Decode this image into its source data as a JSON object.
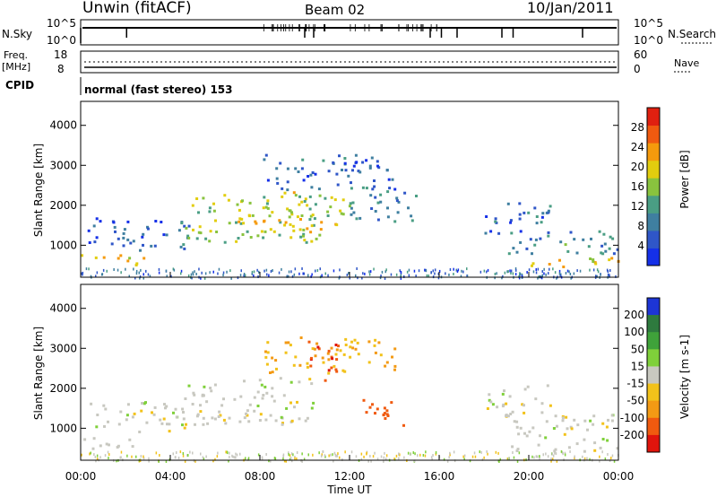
{
  "header": {
    "station": "Unwin (fitACF)",
    "beam": "Beam 02",
    "date": "10/Jan/2011"
  },
  "params": {
    "nsky_label": "N.Sky",
    "nsky_ticks": [
      "10^5",
      "10^0"
    ],
    "nsearch_label": "N.Search",
    "nsearch_ticks": [
      "10^5",
      "10^0"
    ],
    "freq_label_1": "Freq.",
    "freq_label_2": "[MHz]",
    "freq_ticks": [
      "18",
      "8"
    ],
    "nave_label": "Nave",
    "nave_ticks": [
      "60",
      "0"
    ],
    "cpid_label": "CPID",
    "cpid_text": "normal (fast stereo) 153"
  },
  "chart_data": [
    {
      "type": "heatmap",
      "panel": "power",
      "title": "",
      "xlabel": "Time UT",
      "ylabel": "Slant Range [km]",
      "x_ticks": [
        "00:00",
        "04:00",
        "08:00",
        "12:00",
        "16:00",
        "20:00",
        "00:00"
      ],
      "y_ticks": [
        1000,
        2000,
        3000,
        4000
      ],
      "ylim": [
        200,
        4600
      ],
      "colorbar_label": "Power [dB]",
      "colorbar_ticks": [
        4,
        8,
        12,
        16,
        20,
        24,
        28
      ],
      "colorbar_range": [
        0,
        32
      ],
      "colors": [
        "#1530e8",
        "#2f56c8",
        "#3f7fa0",
        "#4a9e84",
        "#89c33e",
        "#e2cd0e",
        "#f59a0c",
        "#f05a10",
        "#e02010"
      ],
      "regions": [
        {
          "t": [
            0.0,
            3.0
          ],
          "range": [
            500,
            800
          ],
          "value": 20
        },
        {
          "t": [
            0.3,
            5.0
          ],
          "range": [
            900,
            1700
          ],
          "value": 6
        },
        {
          "t": [
            4.5,
            10.5
          ],
          "range": [
            1100,
            2300
          ],
          "value": 16
        },
        {
          "t": [
            7.0,
            11.5
          ],
          "range": [
            1200,
            1700
          ],
          "value": 21
        },
        {
          "t": [
            8.0,
            14.0
          ],
          "range": [
            2400,
            3300
          ],
          "value": 7
        },
        {
          "t": [
            9.0,
            12.0
          ],
          "range": [
            1700,
            2400
          ],
          "value": 17
        },
        {
          "t": [
            12.0,
            15.0
          ],
          "range": [
            1600,
            2500
          ],
          "value": 9
        },
        {
          "t": [
            18.0,
            21.0
          ],
          "range": [
            1300,
            2100
          ],
          "value": 8
        },
        {
          "t": [
            19.0,
            24.0
          ],
          "range": [
            800,
            1400
          ],
          "value": 10
        },
        {
          "t": [
            20.0,
            24.0
          ],
          "range": [
            450,
            750
          ],
          "value": 21
        }
      ]
    },
    {
      "type": "heatmap",
      "panel": "velocity",
      "title": "",
      "xlabel": "Time UT",
      "ylabel": "Slant Range [km]",
      "x_ticks": [
        "00:00",
        "04:00",
        "08:00",
        "12:00",
        "16:00",
        "20:00",
        "00:00"
      ],
      "y_ticks": [
        1000,
        2000,
        3000,
        4000
      ],
      "ylim": [
        200,
        4600
      ],
      "colorbar_label": "Velocity [m s-1]",
      "colorbar_ticks": [
        "200",
        "100",
        "50",
        "15",
        "-15",
        "-50",
        "-100",
        "-200"
      ],
      "colorbar_colors": [
        "#1d35d5",
        "#2e7a3e",
        "#3fa23a",
        "#7fd03a",
        "#c8c8c0",
        "#f2c21a",
        "#f39a14",
        "#f05a0f",
        "#e0140c"
      ],
      "regions": [
        {
          "t": [
            0.0,
            3.0
          ],
          "range": [
            500,
            800
          ],
          "value": 0
        },
        {
          "t": [
            0.3,
            5.0
          ],
          "range": [
            900,
            1700
          ],
          "value": 0
        },
        {
          "t": [
            4.5,
            10.5
          ],
          "range": [
            1100,
            2300
          ],
          "value": 0
        },
        {
          "t": [
            8.0,
            14.0
          ],
          "range": [
            2400,
            3300
          ],
          "value": -50
        },
        {
          "t": [
            10.0,
            11.5
          ],
          "range": [
            2200,
            3200
          ],
          "value": -200
        },
        {
          "t": [
            12.5,
            14.5
          ],
          "range": [
            1100,
            1800
          ],
          "value": -150
        },
        {
          "t": [
            18.0,
            21.0
          ],
          "range": [
            1300,
            2100
          ],
          "value": 0
        },
        {
          "t": [
            19.0,
            24.0
          ],
          "range": [
            450,
            1400
          ],
          "value": 0
        }
      ]
    }
  ]
}
